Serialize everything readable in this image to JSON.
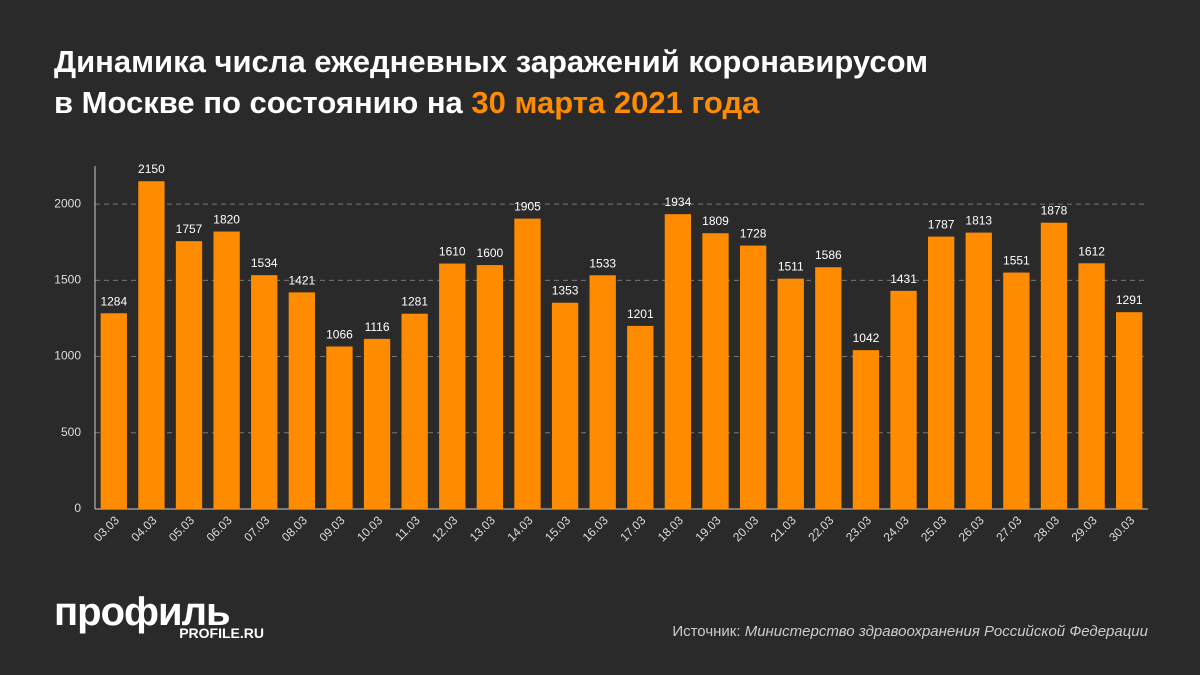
{
  "chart_data": {
    "type": "bar",
    "title": "Динамика числа ежедневных заражений коронавирусом",
    "title_line2": "в Москве по состоянию на",
    "title_highlight": "30 марта 2021 года",
    "categories": [
      "03.03",
      "04.03",
      "05.03",
      "06.03",
      "07.03",
      "08.03",
      "09.03",
      "10.03",
      "11.03",
      "12.03",
      "13.03",
      "14.03",
      "15.03",
      "16.03",
      "17.03",
      "18.03",
      "19.03",
      "20.03",
      "21.03",
      "22.03",
      "23.03",
      "24.03",
      "25.03",
      "26.03",
      "27.03",
      "28.03",
      "29.03",
      "30.03"
    ],
    "values": [
      1284,
      2150,
      1757,
      1820,
      1534,
      1421,
      1066,
      1116,
      1281,
      1610,
      1600,
      1905,
      1353,
      1533,
      1201,
      1934,
      1809,
      1728,
      1511,
      1586,
      1042,
      1431,
      1787,
      1813,
      1551,
      1878,
      1612,
      1291
    ],
    "color": "#ff8c00",
    "ylim": [
      0,
      2250
    ],
    "yticks": [
      0,
      500,
      1000,
      1500,
      2000
    ],
    "grid": true,
    "source_label": "Источник:",
    "source": "Министерство здравоохранения Российской Федерации",
    "logo": "профиль",
    "logo_url": "PROFILE.RU"
  }
}
